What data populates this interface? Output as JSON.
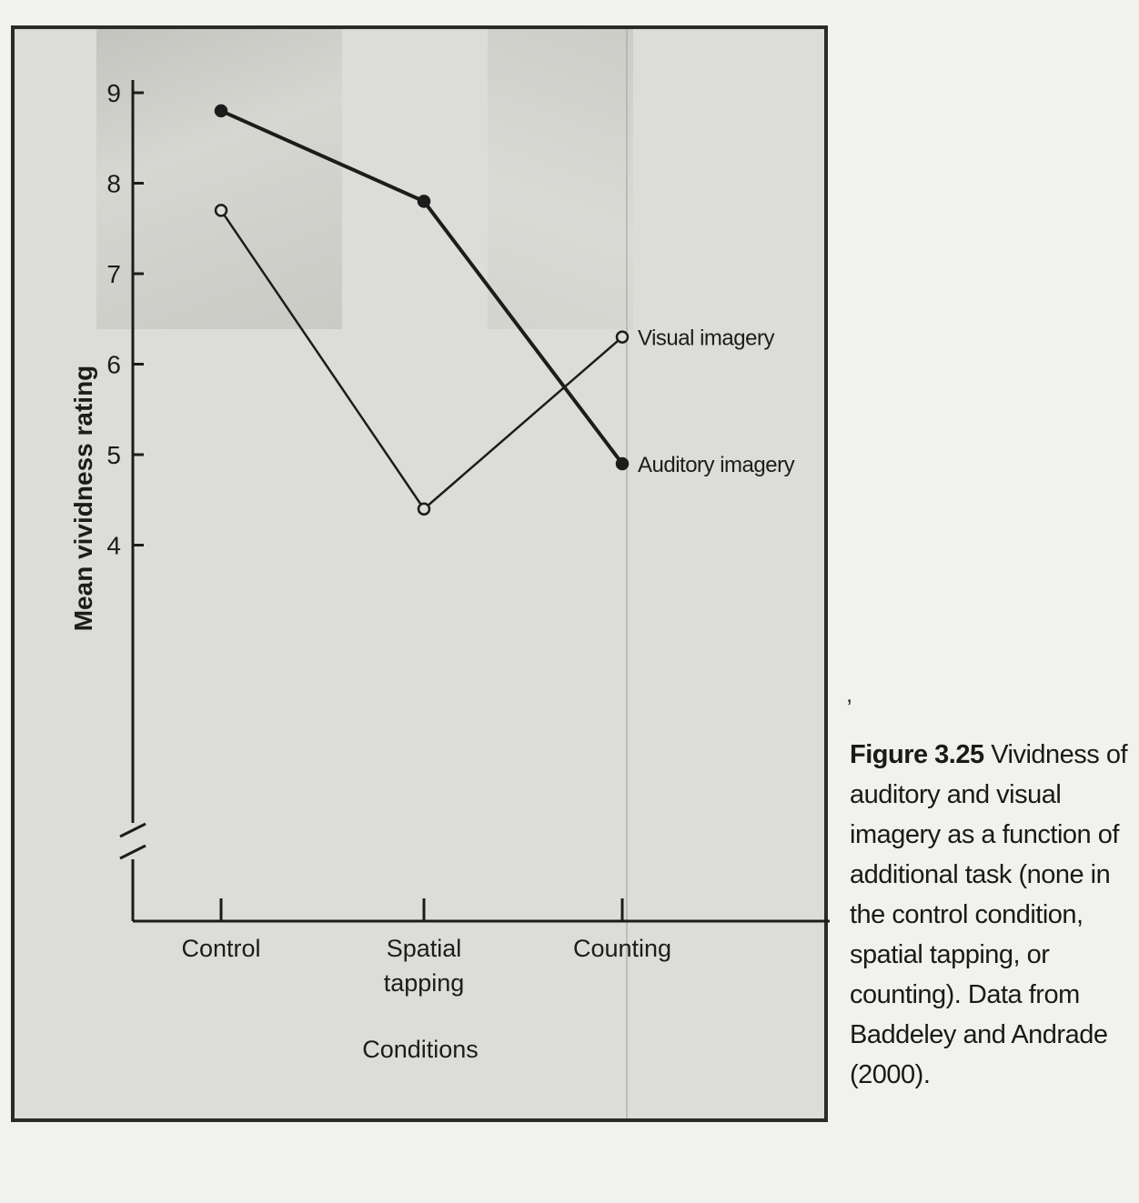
{
  "chart_data": {
    "type": "line",
    "categories": [
      "Control",
      "Spatial\ntapping",
      "Counting"
    ],
    "series": [
      {
        "name": "Visual imagery",
        "marker": "open-circle",
        "values": [
          7.7,
          4.4,
          6.3
        ]
      },
      {
        "name": "Auditory imagery",
        "marker": "filled-circle",
        "values": [
          8.8,
          7.8,
          4.9
        ]
      }
    ],
    "xlabel": "Conditions",
    "ylabel": "Mean vividness rating",
    "yticks": [
      4,
      5,
      6,
      7,
      8,
      9
    ],
    "ylim": [
      3.2,
      9.1
    ],
    "axis_break": true,
    "grid": false,
    "legend": "inline-end-labels"
  },
  "caption": {
    "label": "Figure 3.25",
    "text": "Vividness of auditory and visual imagery as a function of additional task (none in the control condition, spatial tapping, or counting). Data from Baddeley and Andrade (2000)."
  },
  "colors": {
    "line": "#1c1c1c",
    "paper": "#dcdcd8",
    "background": "#f1f1ee"
  }
}
